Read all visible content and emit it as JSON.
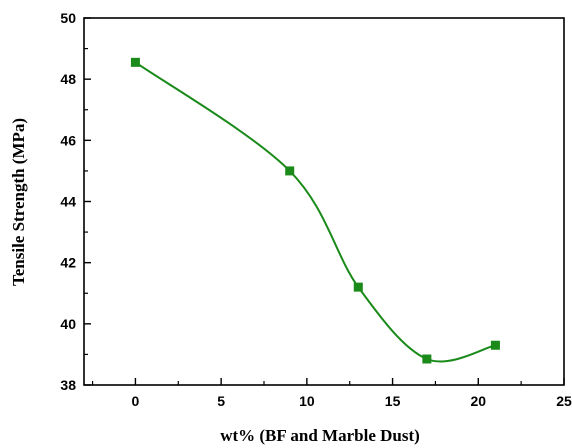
{
  "chart_data": {
    "type": "line",
    "title": "",
    "xlabel": "wt% (BF and Marble Dust)",
    "ylabel": "Tensile Strength (MPa)",
    "xlim": [
      -3,
      25
    ],
    "ylim": [
      38,
      50
    ],
    "xticks": [
      0,
      5,
      10,
      15,
      20,
      25
    ],
    "yticks": [
      38,
      40,
      42,
      44,
      46,
      48,
      50
    ],
    "grid": false,
    "legend": "none",
    "series": [
      {
        "color": "#1a8a1a",
        "marker": "square",
        "smooth": true,
        "x": [
          0,
          9,
          13,
          17,
          21
        ],
        "y": [
          48.55,
          45.0,
          41.2,
          38.85,
          39.3
        ]
      }
    ]
  }
}
